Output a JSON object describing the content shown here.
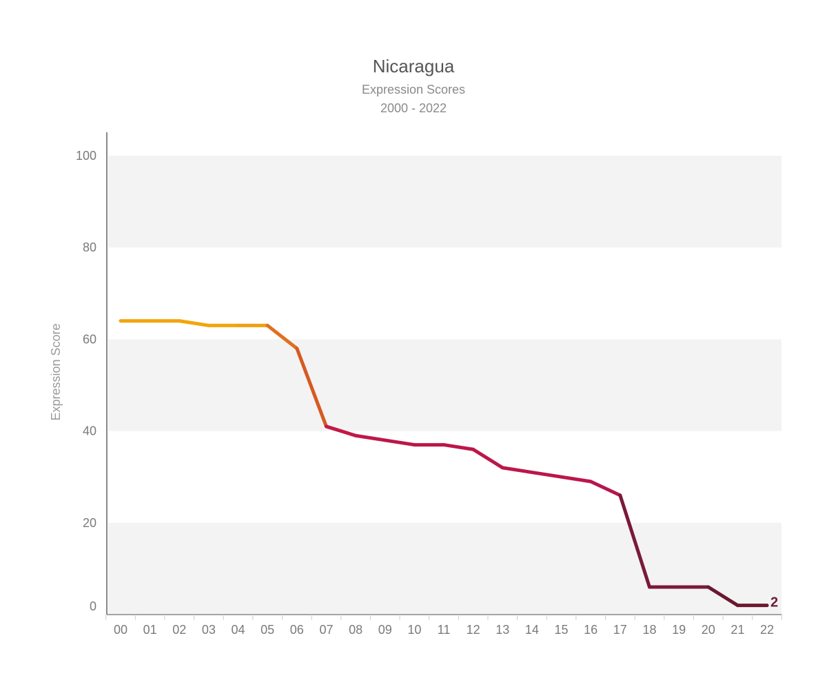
{
  "chart_data": {
    "type": "line",
    "title": "Nicaragua",
    "subtitle": "Expression Scores",
    "subtitle2": "2000 - 2022",
    "xlabel": "",
    "ylabel": "Expression Score",
    "ylim": [
      0,
      100
    ],
    "yticks": [
      0,
      20,
      40,
      60,
      80,
      100
    ],
    "categories": [
      "00",
      "01",
      "02",
      "03",
      "04",
      "05",
      "06",
      "07",
      "08",
      "09",
      "10",
      "11",
      "12",
      "13",
      "14",
      "15",
      "16",
      "17",
      "18",
      "19",
      "20",
      "21",
      "22"
    ],
    "series": [
      {
        "values": [
          64,
          64,
          64,
          63,
          63,
          63,
          58,
          41,
          39,
          38,
          37,
          37,
          36,
          32,
          31,
          30,
          29,
          26,
          6,
          6,
          6,
          2,
          2
        ],
        "colors": [
          "#f2a50c",
          "#f2a50c",
          "#f2a50c",
          "#f2a50c",
          "#f2a50c",
          "#f0a00e",
          "#e07020",
          "#d65a22",
          "#c41848",
          "#c01848",
          "#bc164a",
          "#bc164a",
          "#bc164a",
          "#bc164a",
          "#bc164a",
          "#bc164a",
          "#bc164a",
          "#b81650",
          "#7a1a38",
          "#7a1a38",
          "#7a1a38",
          "#6a1830",
          "#6a1830"
        ]
      }
    ],
    "end_label": "2",
    "end_label_color": "#6e1a32",
    "band_color": "#f3f3f3",
    "axis_color": "#888888"
  }
}
